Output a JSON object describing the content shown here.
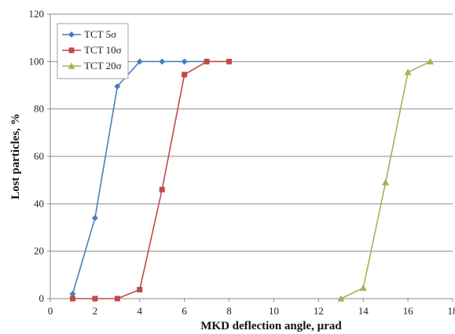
{
  "chart_data": {
    "type": "line",
    "title": "",
    "xlabel": "MKD deflection angle, µrad",
    "ylabel": "Lost particles, %",
    "xlim": [
      0,
      18
    ],
    "ylim": [
      0,
      120
    ],
    "xticks": [
      0,
      2,
      4,
      6,
      8,
      10,
      12,
      14,
      16,
      18
    ],
    "yticks": [
      0,
      20,
      40,
      60,
      80,
      100,
      120
    ],
    "grid": "horizontal",
    "legend_position": "top-left",
    "series": [
      {
        "name": "TCT 5σ",
        "color": "#4a7ebb",
        "marker": "diamond",
        "points": [
          [
            1,
            2
          ],
          [
            2,
            34
          ],
          [
            3,
            89.5
          ],
          [
            4,
            100
          ],
          [
            5,
            100
          ],
          [
            6,
            100
          ],
          [
            7,
            100
          ]
        ]
      },
      {
        "name": "TCT 10σ",
        "color": "#be4b48",
        "marker": "square",
        "points": [
          [
            1,
            0
          ],
          [
            2,
            0
          ],
          [
            3,
            0
          ],
          [
            4,
            3.8
          ],
          [
            5,
            46
          ],
          [
            6,
            94.5
          ],
          [
            7,
            100
          ],
          [
            8,
            100
          ]
        ]
      },
      {
        "name": "TCT 20σ",
        "color": "#98b954",
        "marker": "triangle",
        "points": [
          [
            13,
            0
          ],
          [
            14,
            4.5
          ],
          [
            15,
            49
          ],
          [
            16,
            95.5
          ],
          [
            17,
            100
          ]
        ]
      }
    ]
  }
}
